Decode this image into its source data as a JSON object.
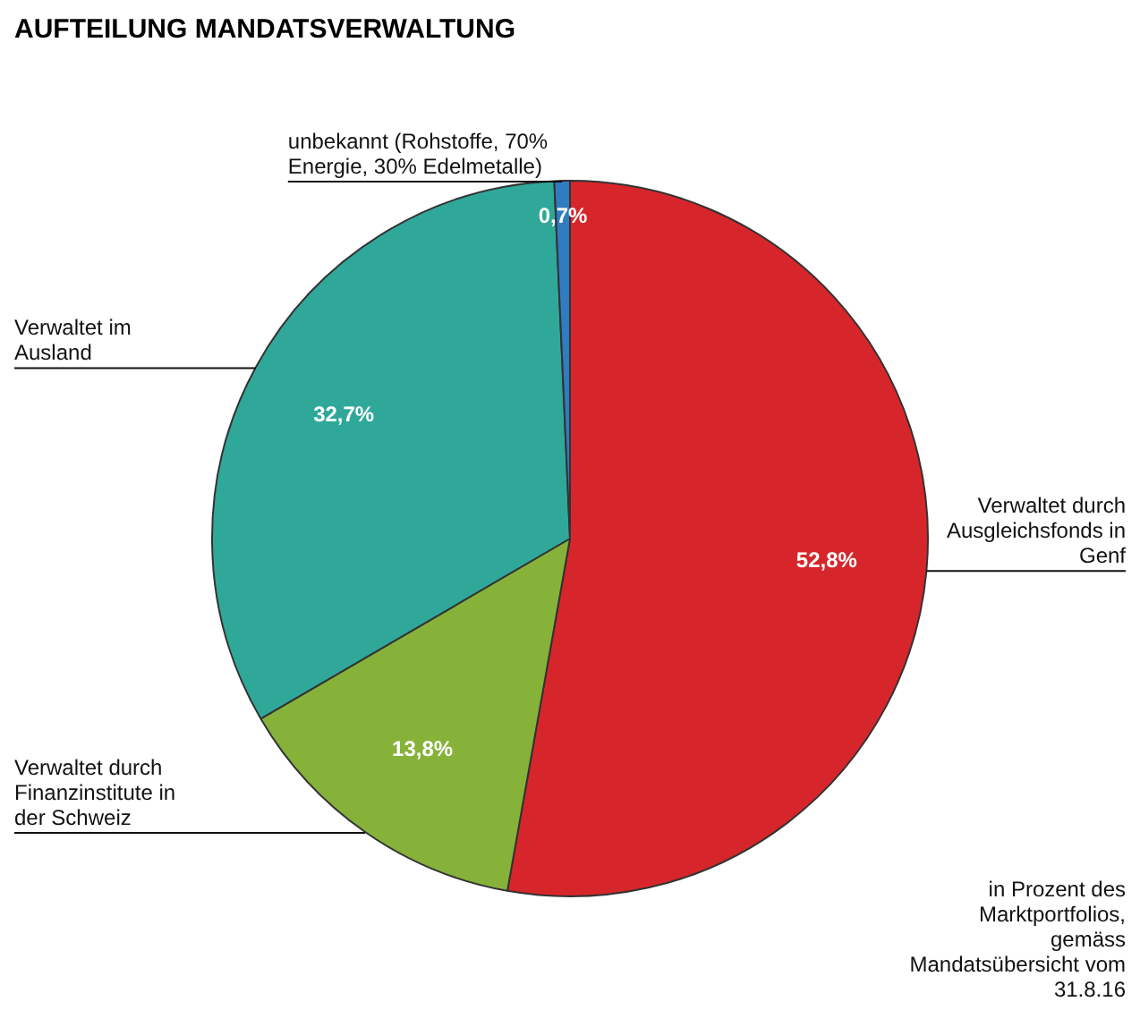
{
  "chart_data": {
    "type": "pie",
    "title": "AUFTEILUNG MANDATSVERWALTUNG",
    "categories": [
      "Verwaltet durch Ausgleichsfonds in Genf",
      "Verwaltet durch Finanzinstitute in der Schweiz",
      "Verwaltet im Ausland",
      "unbekannt (Rohstoffe, 70% Energie, 30% Edelmetalle)"
    ],
    "values": [
      52.8,
      13.8,
      32.7,
      0.7
    ],
    "colors": [
      "#d7262b",
      "#86b23a",
      "#2fa89a",
      "#2f7cc0"
    ],
    "value_labels": [
      "52,8%",
      "13,8%",
      "32,7%",
      "0,7%"
    ],
    "annotations": [
      "in Prozent des Marktportfolios, gemäss Mandatsübersicht vom 31.8.16"
    ]
  }
}
